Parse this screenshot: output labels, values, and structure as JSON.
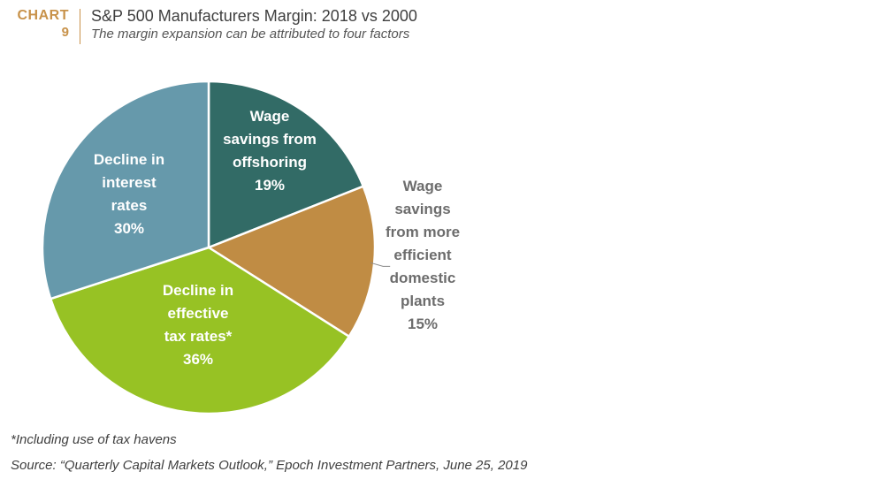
{
  "header": {
    "chart_word": "CHART",
    "chart_number": "9"
  },
  "chart_data": {
    "type": "pie",
    "title": "S&P 500 Manufacturers Margin: 2018 vs 2000",
    "subtitle": "The margin expansion can be attributed to four factors",
    "slices": [
      {
        "label": [
          "Wage",
          "savings from",
          "offshoring"
        ],
        "value": 19,
        "value_label": "19%",
        "color": "#326b66",
        "text_color": "#ffffff",
        "label_position": "inside"
      },
      {
        "label": [
          "Wage",
          "savings",
          "from more",
          "efficient",
          "domestic",
          "plants"
        ],
        "value": 15,
        "value_label": "15%",
        "color": "#c08c44",
        "text_color": "#6d6d6d",
        "label_position": "outside-right"
      },
      {
        "label": [
          "Decline in",
          "effective",
          "tax rates*"
        ],
        "value": 36,
        "value_label": "36%",
        "color": "#97c224",
        "text_color": "#ffffff",
        "label_position": "inside"
      },
      {
        "label": [
          "Decline in",
          "interest",
          "rates"
        ],
        "value": 30,
        "value_label": "30%",
        "color": "#6699ab",
        "text_color": "#ffffff",
        "label_position": "inside"
      }
    ],
    "start_angle": "12 o'clock",
    "direction": "clockwise",
    "slice_border_color": "#ffffff"
  },
  "footer": {
    "note": "*Including use of tax havens",
    "source": "Source: “Quarterly Capital Markets Outlook,” Epoch Investment Partners, June 25, 2019"
  }
}
